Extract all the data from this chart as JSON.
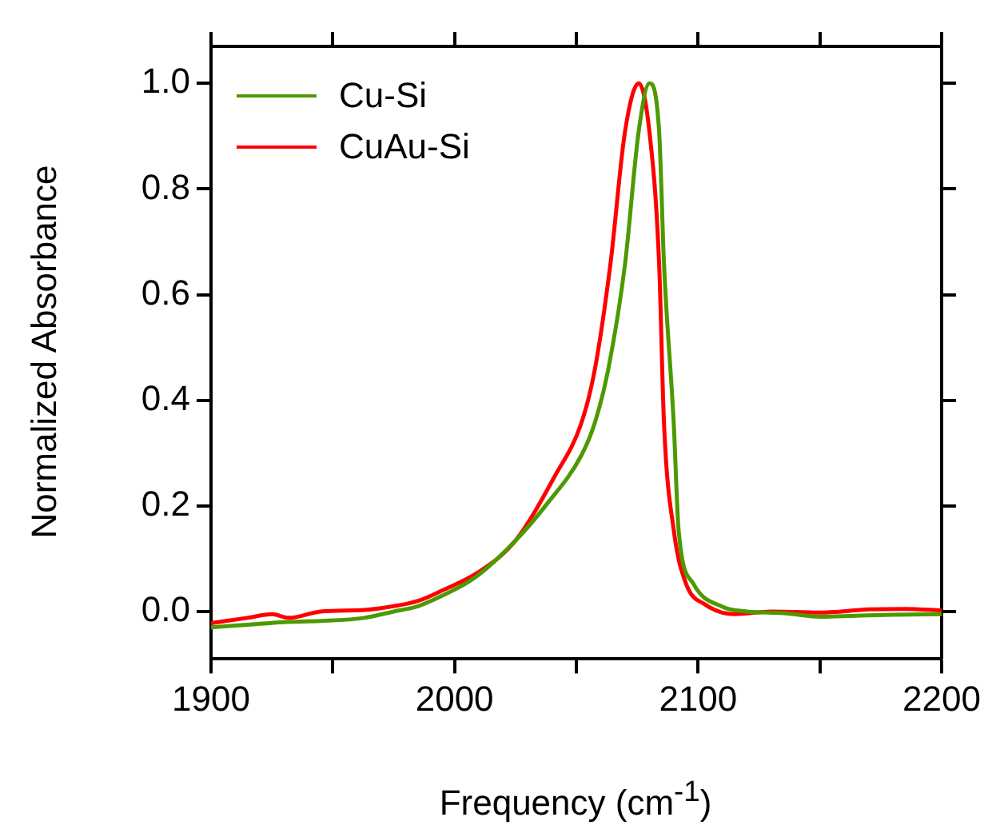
{
  "chart_data": {
    "type": "line",
    "xlabel": "Frequency (cm$^{-1}$)",
    "ylabel": "Normalized Absorbance",
    "xlim": [
      1900,
      2200
    ],
    "ylim": [
      -0.09,
      1.07
    ],
    "xticks": [
      1900,
      {
        "value": 1950,
        "label": null
      },
      2000,
      {
        "value": 2050,
        "label": null
      },
      2100,
      {
        "value": 2150,
        "label": null
      },
      2200
    ],
    "yticks": [
      {
        "value": 0,
        "label": "0.0"
      },
      0.2,
      0.4,
      0.6,
      0.8,
      {
        "value": 1,
        "label": "1.0"
      }
    ],
    "legend": "top left",
    "grid": false,
    "marker": "none",
    "line_style": "solid",
    "series": [
      {
        "name": "Cu-Si",
        "color": "#4c9a00",
        "x": [
          1900,
          1915,
          1930,
          1945,
          1963,
          1975,
          1985,
          1995,
          2008,
          2025,
          2038,
          2052,
          2057.5,
          2063,
          2070,
          2075.6,
          2080,
          2084,
          2086,
          2090,
          2092,
          2098,
          2110,
          2120,
          2135,
          2150,
          2165,
          2180,
          2200
        ],
        "values": [
          -0.03,
          -0.025,
          -0.02,
          -0.018,
          -0.012,
          0.0,
          0.01,
          0.03,
          0.063,
          0.134,
          0.204,
          0.295,
          0.356,
          0.456,
          0.658,
          0.909,
          1.0,
          0.909,
          0.658,
          0.356,
          0.154,
          0.053,
          0.009,
          0.0,
          -0.003,
          -0.01,
          -0.008,
          -0.006,
          -0.005
        ]
      },
      {
        "name": "CuAu-Si",
        "color": "#ff0000",
        "x": [
          1900,
          1915,
          1925,
          1932,
          1945,
          1963,
          1975,
          1985,
          1995,
          2010,
          2025,
          2041,
          2052,
          2057.5,
          2064,
          2070,
          2075.6,
          2080,
          2084,
          2086,
          2090,
          2095,
          2103,
          2115,
          2130,
          2150,
          2170,
          2185,
          2200
        ],
        "values": [
          -0.022,
          -0.012,
          -0.005,
          -0.012,
          0.0,
          0.003,
          0.01,
          0.02,
          0.04,
          0.075,
          0.134,
          0.255,
          0.356,
          0.456,
          0.658,
          0.909,
          1.0,
          0.909,
          0.658,
          0.356,
          0.154,
          0.053,
          0.013,
          -0.005,
          0.0,
          -0.002,
          0.004,
          0.005,
          0.002
        ]
      }
    ]
  }
}
